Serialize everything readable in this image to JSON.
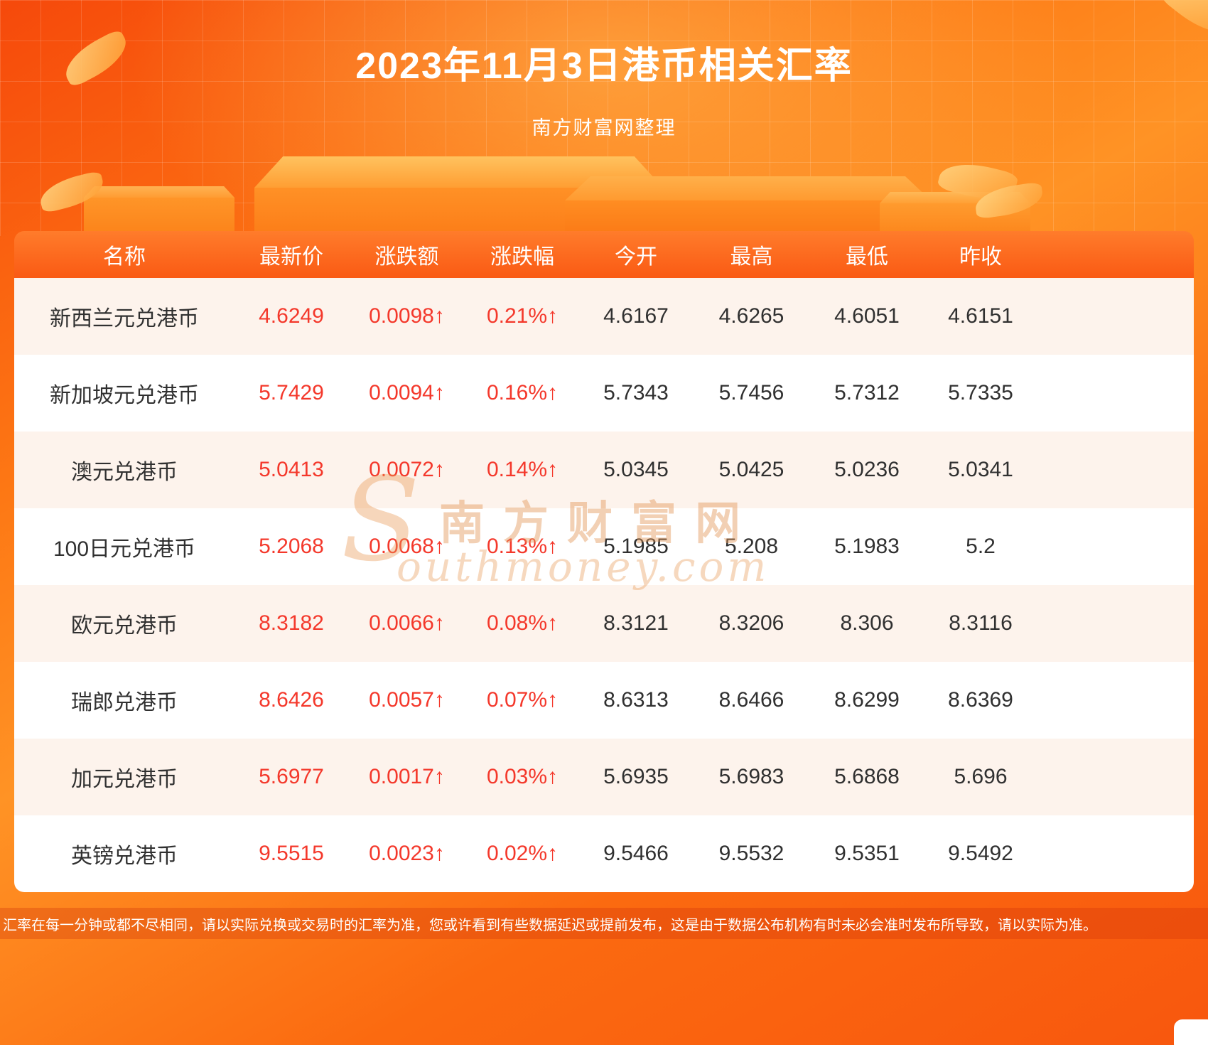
{
  "header": {
    "title": "2023年11月3日港币相关汇率",
    "subtitle": "南方财富网整理"
  },
  "watermark": {
    "initial": "S",
    "cn": "南方财富网",
    "en": "outhmoney.com"
  },
  "footer": {
    "disclaimer": "汇率在每一分钟或都不尽相同，请以实际兑换或交易时的汇率为准，您或许看到有些数据延迟或提前发布，这是由于数据公布机构有时未必会准时发布所导致，请以实际为准。"
  },
  "colors": {
    "background_orange": "#fb6a10",
    "header_gradient_top": "#ff7c2b",
    "header_gradient_bottom": "#fa5a14",
    "row_tint": "#fdf3ec",
    "row_white": "#ffffff",
    "red_value": "#f4382b",
    "dark_value": "#303030",
    "title_text": "#ffffff"
  },
  "chart_data": {
    "type": "table",
    "title": "2023年11月3日港币相关汇率",
    "columns": [
      "名称",
      "最新价",
      "涨跌额",
      "涨跌幅",
      "今开",
      "最高",
      "最低",
      "昨收"
    ],
    "red_columns": [
      1,
      2,
      3
    ],
    "rows": [
      [
        "新西兰元兑港币",
        "4.6249",
        "0.0098↑",
        "0.21%↑",
        "4.6167",
        "4.6265",
        "4.6051",
        "4.6151"
      ],
      [
        "新加坡元兑港币",
        "5.7429",
        "0.0094↑",
        "0.16%↑",
        "5.7343",
        "5.7456",
        "5.7312",
        "5.7335"
      ],
      [
        "澳元兑港币",
        "5.0413",
        "0.0072↑",
        "0.14%↑",
        "5.0345",
        "5.0425",
        "5.0236",
        "5.0341"
      ],
      [
        "100日元兑港币",
        "5.2068",
        "0.0068↑",
        "0.13%↑",
        "5.1985",
        "5.208",
        "5.1983",
        "5.2"
      ],
      [
        "欧元兑港币",
        "8.3182",
        "0.0066↑",
        "0.08%↑",
        "8.3121",
        "8.3206",
        "8.306",
        "8.3116"
      ],
      [
        "瑞郎兑港币",
        "8.6426",
        "0.0057↑",
        "0.07%↑",
        "8.6313",
        "8.6466",
        "8.6299",
        "8.6369"
      ],
      [
        "加元兑港币",
        "5.6977",
        "0.0017↑",
        "0.03%↑",
        "5.6935",
        "5.6983",
        "5.6868",
        "5.696"
      ],
      [
        "英镑兑港币",
        "9.5515",
        "0.0023↑",
        "0.02%↑",
        "9.5466",
        "9.5532",
        "9.5351",
        "9.5492"
      ]
    ]
  }
}
